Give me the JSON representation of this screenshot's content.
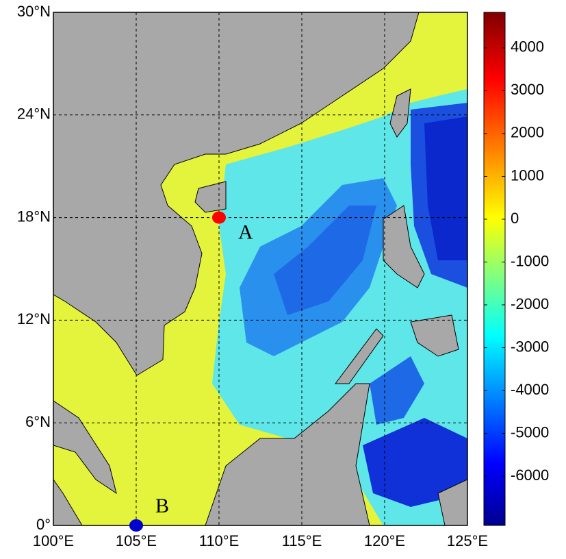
{
  "map": {
    "xlim": [
      100,
      125
    ],
    "ylim": [
      0,
      30
    ],
    "xticks": [
      {
        "value": 100,
        "label": "100°E"
      },
      {
        "value": 105,
        "label": "105°E"
      },
      {
        "value": 110,
        "label": "110°E"
      },
      {
        "value": 115,
        "label": "115°E"
      },
      {
        "value": 120,
        "label": "120°E"
      },
      {
        "value": 125,
        "label": "125°E"
      }
    ],
    "yticks": [
      {
        "value": 0,
        "label": "0°"
      },
      {
        "value": 6,
        "label": "6°N"
      },
      {
        "value": 12,
        "label": "12°N"
      },
      {
        "value": 18,
        "label": "18°N"
      },
      {
        "value": 24,
        "label": "24°N"
      },
      {
        "value": 30,
        "label": "30°N"
      }
    ],
    "grid": true,
    "points": [
      {
        "label": "A",
        "lon": 110,
        "lat": 18,
        "color": "#ff0000"
      },
      {
        "label": "B",
        "lon": 105,
        "lat": 0,
        "color": "#0000cc"
      }
    ]
  },
  "colorbar": {
    "clim": [
      -7150,
      4830
    ],
    "ticks": [
      -6000,
      -5000,
      -4000,
      -3000,
      -2000,
      -1000,
      0,
      1000,
      2000,
      3000,
      4000
    ]
  }
}
